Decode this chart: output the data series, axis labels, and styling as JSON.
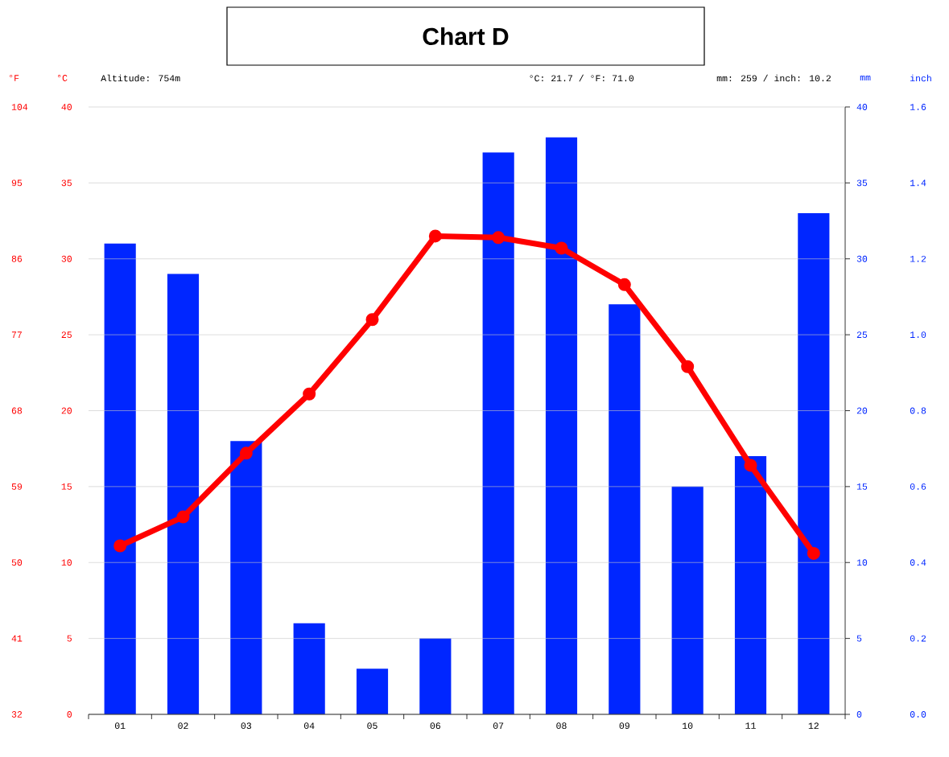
{
  "chart_data": {
    "type": "bar",
    "title": "Chart D",
    "categories": [
      "01",
      "02",
      "03",
      "04",
      "05",
      "06",
      "07",
      "08",
      "09",
      "10",
      "11",
      "12"
    ],
    "series": [
      {
        "axis": "y2",
        "color": "#0026ff",
        "values": [
          31,
          29,
          18,
          6,
          3,
          5,
          37,
          38,
          27,
          15,
          17,
          33
        ]
      },
      {
        "type": "line",
        "axis": "y",
        "color": "#ff0000",
        "marker": "circle",
        "line_style": "solid",
        "values": [
          11.1,
          13.0,
          17.2,
          21.1,
          26.0,
          31.5,
          31.4,
          30.7,
          28.3,
          22.9,
          16.4,
          10.6
        ]
      }
    ],
    "ylabel": "°C",
    "y2label": "mm",
    "y3label": "°F",
    "ylim": [
      0,
      40
    ],
    "yticks": [
      0,
      5,
      10,
      15,
      20,
      25,
      30,
      35,
      40
    ],
    "y2lim": [
      0,
      40
    ],
    "y2ticks": [
      0,
      5,
      10,
      15,
      20,
      25,
      30,
      35,
      40
    ],
    "y3lim": [
      32,
      104
    ],
    "y3ticks": [
      32,
      41,
      50,
      59,
      68,
      77,
      86,
      95,
      104
    ],
    "grid": "y",
    "annotations": [
      "Altitude: 754m",
      "°C: 21.7 / °F: 71.0",
      "mm: 259 / inch: 10.2",
      "inch",
      "0.0",
      "0.2",
      "0.4",
      "0.6",
      "0.8",
      "1.0",
      "1.2",
      "1.4",
      "1.6"
    ]
  }
}
